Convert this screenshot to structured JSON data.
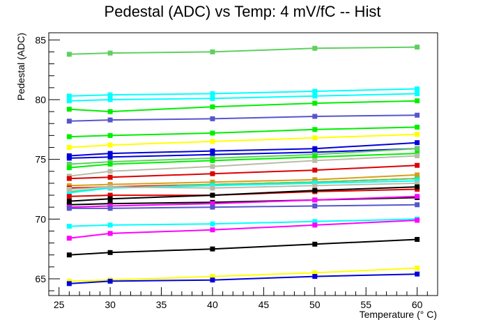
{
  "chart_data": {
    "type": "line",
    "title": "Pedestal (ADC) vs Temp: 4 mV/fC -- Hist",
    "xlabel": "Temperature (° C)",
    "ylabel": "Pedestal (ADC)",
    "xlim": [
      24,
      62
    ],
    "ylim": [
      63.6,
      85.6
    ],
    "xticks": [
      25,
      30,
      35,
      40,
      45,
      50,
      55,
      60
    ],
    "yticks": [
      65,
      70,
      75,
      80,
      85
    ],
    "grid": false,
    "legend": "none",
    "x": [
      26,
      30,
      40,
      50,
      60
    ],
    "series": [
      {
        "color": "#5fcf5f",
        "values": [
          83.8,
          83.9,
          84.0,
          84.3,
          84.4
        ]
      },
      {
        "color": "#00ffff",
        "values": [
          80.3,
          80.4,
          80.5,
          80.7,
          80.9
        ]
      },
      {
        "color": "#00ffff",
        "values": [
          79.9,
          80.0,
          80.1,
          80.3,
          80.5
        ]
      },
      {
        "color": "#00ee00",
        "values": [
          79.2,
          79.0,
          79.4,
          79.7,
          79.9
        ]
      },
      {
        "color": "#5555cc",
        "values": [
          78.2,
          78.3,
          78.4,
          78.6,
          78.7
        ]
      },
      {
        "color": "#00ee00",
        "values": [
          76.9,
          77.0,
          77.2,
          77.5,
          77.7
        ]
      },
      {
        "color": "#ffff00",
        "values": [
          76.0,
          76.2,
          76.5,
          76.8,
          77.1
        ]
      },
      {
        "color": "#0000dd",
        "values": [
          75.3,
          75.5,
          75.7,
          75.9,
          76.4
        ]
      },
      {
        "color": "#0000dd",
        "values": [
          75.1,
          75.2,
          75.4,
          75.6,
          75.9
        ]
      },
      {
        "color": "#5fcf5f",
        "values": [
          74.6,
          74.8,
          75.1,
          75.4,
          75.9
        ]
      },
      {
        "color": "#00ee00",
        "values": [
          74.3,
          74.6,
          74.9,
          75.2,
          75.5
        ]
      },
      {
        "color": "#bbbbaa",
        "values": [
          73.6,
          74.0,
          74.4,
          74.9,
          75.3
        ]
      },
      {
        "color": "#dd0000",
        "values": [
          73.4,
          73.5,
          73.8,
          74.1,
          74.5
        ]
      },
      {
        "color": "#d4a017",
        "values": [
          72.8,
          72.9,
          73.1,
          73.3,
          73.7
        ]
      },
      {
        "color": "#dd0000",
        "values": [
          72.6,
          72.7,
          72.9,
          73.1,
          73.4
        ]
      },
      {
        "color": "#5fcf5f",
        "values": [
          72.3,
          72.6,
          72.9,
          73.1,
          73.4
        ]
      },
      {
        "color": "#00ffff",
        "values": [
          72.2,
          72.6,
          72.8,
          73.0,
          73.2
        ]
      },
      {
        "color": "#bbbbaa",
        "values": [
          72.5,
          72.7,
          72.6,
          72.8,
          73.0
        ]
      },
      {
        "color": "#dd0000",
        "values": [
          71.9,
          72.0,
          72.0,
          72.3,
          72.5
        ]
      },
      {
        "color": "#000000",
        "values": [
          71.5,
          71.7,
          72.0,
          72.4,
          72.7
        ]
      },
      {
        "color": "#000000",
        "values": [
          71.2,
          71.3,
          71.4,
          71.6,
          71.8
        ]
      },
      {
        "color": "#ff00ff",
        "values": [
          71.0,
          71.1,
          71.3,
          71.6,
          71.9
        ]
      },
      {
        "color": "#5555cc",
        "values": [
          70.9,
          70.9,
          71.0,
          71.1,
          71.2
        ]
      },
      {
        "color": "#00ffff",
        "values": [
          69.4,
          69.5,
          69.6,
          69.8,
          70.0
        ]
      },
      {
        "color": "#ff00ff",
        "values": [
          68.4,
          68.8,
          69.1,
          69.5,
          69.9
        ]
      },
      {
        "color": "#000000",
        "values": [
          67.0,
          67.2,
          67.5,
          67.9,
          68.3
        ]
      },
      {
        "color": "#ffff00",
        "values": [
          64.8,
          64.9,
          65.2,
          65.5,
          65.9
        ]
      },
      {
        "color": "#0000dd",
        "values": [
          64.6,
          64.8,
          64.9,
          65.2,
          65.4
        ]
      }
    ]
  }
}
